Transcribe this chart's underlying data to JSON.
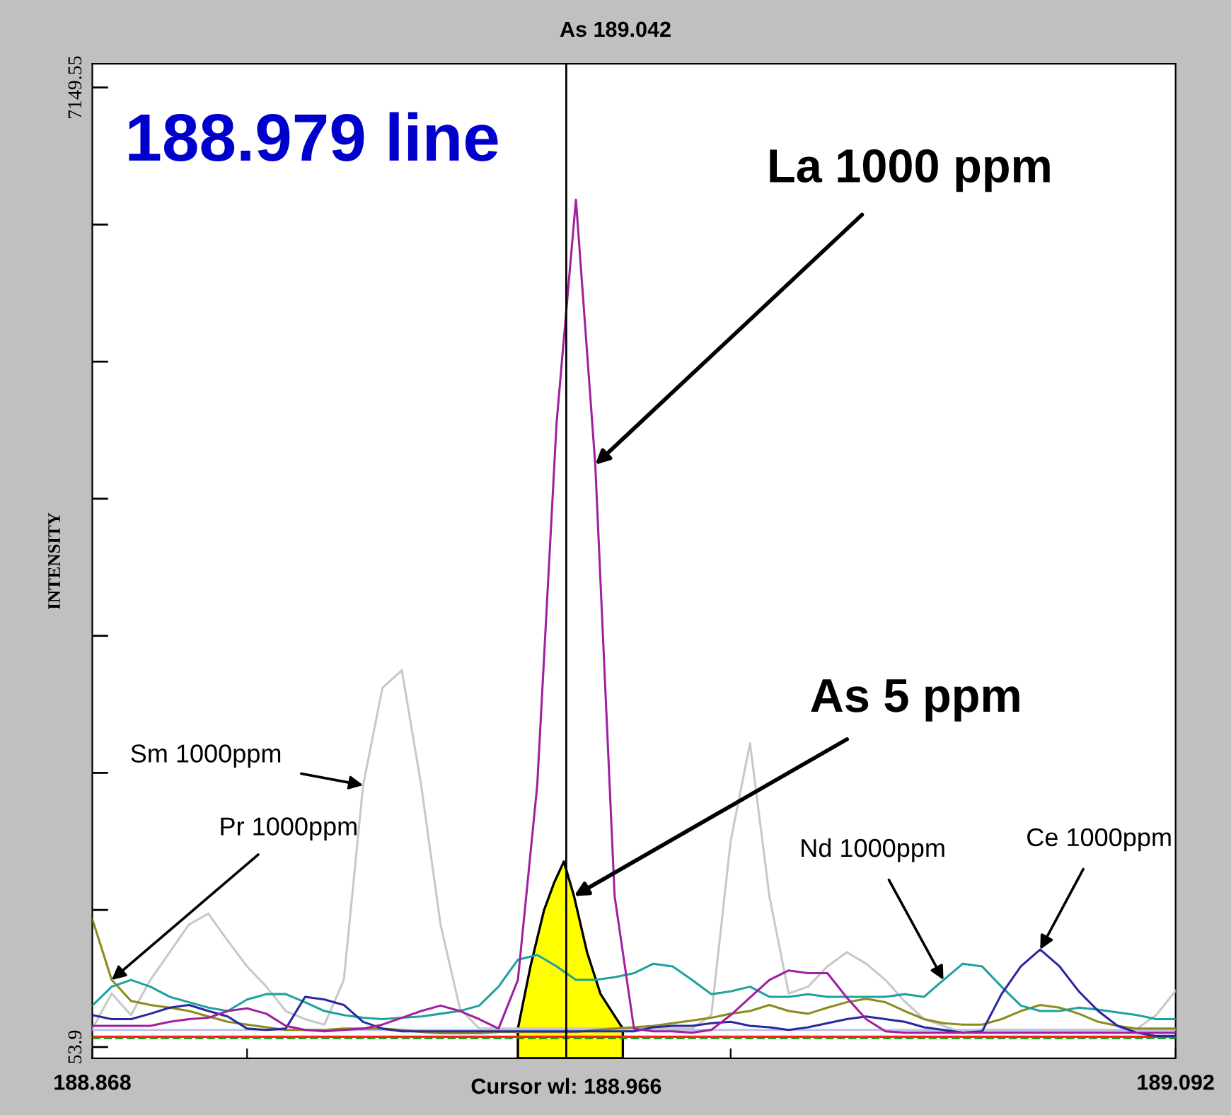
{
  "chart_data": {
    "type": "line",
    "title": "As 189.042",
    "ylabel": "INTENSITY",
    "x": [
      188.868,
      188.872,
      188.876,
      188.88,
      188.884,
      188.888,
      188.892,
      188.896,
      188.9,
      188.904,
      188.908,
      188.912,
      188.916,
      188.92,
      188.924,
      188.928,
      188.932,
      188.936,
      188.94,
      188.944,
      188.948,
      188.952,
      188.956,
      188.96,
      188.964,
      188.968,
      188.972,
      188.976,
      188.98,
      188.984,
      188.988,
      188.992,
      188.996,
      189.0,
      189.004,
      189.008,
      189.012,
      189.016,
      189.02,
      189.024,
      189.028,
      189.032,
      189.036,
      189.04,
      189.044,
      189.048,
      189.052,
      189.056,
      189.06,
      189.064,
      189.068,
      189.072,
      189.076,
      189.08,
      189.084,
      189.088,
      189.092
    ],
    "series": [
      {
        "color": "#c8c8c8",
        "values": [
          190,
          450,
          290,
          550,
          755,
          960,
          1040,
          840,
          650,
          500,
          320,
          260,
          220,
          550,
          1990,
          2710,
          2840,
          1990,
          960,
          340,
          190,
          190,
          190,
          190,
          190,
          190,
          190,
          190,
          190,
          190,
          190,
          190,
          290,
          1580,
          2300,
          1170,
          450,
          500,
          650,
          755,
          670,
          550,
          390,
          260,
          210,
          160,
          180,
          180,
          180,
          180,
          180,
          180,
          180,
          180,
          190,
          290,
          470
        ]
      },
      {
        "color": "#c0c0e8",
        "values": [
          180,
          180,
          180,
          180,
          180,
          180,
          180,
          180,
          180,
          180,
          180,
          180,
          180,
          180,
          180,
          180,
          180,
          180,
          180,
          180,
          180,
          180,
          180,
          180,
          180,
          180,
          180,
          180,
          180,
          180,
          180,
          180,
          180,
          180,
          180,
          180,
          180,
          180,
          180,
          180,
          180,
          180,
          180,
          180,
          180,
          180,
          180,
          180,
          180,
          180,
          180,
          180,
          180,
          180,
          180,
          180,
          180
        ]
      },
      {
        "color": "#00a000",
        "line_style": "dashed",
        "values": [
          120,
          120,
          120,
          120,
          120,
          120,
          120,
          120,
          120,
          120,
          120,
          120,
          120,
          120,
          120,
          120,
          120,
          120,
          120,
          120,
          120,
          120,
          120,
          120,
          120,
          120,
          120,
          120,
          120,
          120,
          120,
          120,
          120,
          120,
          120,
          120,
          120,
          120,
          120,
          120,
          120,
          120,
          120,
          120,
          120,
          120,
          120,
          120,
          120,
          120,
          120,
          120,
          120,
          120,
          120,
          120,
          120
        ]
      },
      {
        "color": "#ff2020",
        "values": [
          130,
          130,
          130,
          130,
          130,
          130,
          130,
          130,
          130,
          130,
          130,
          130,
          130,
          130,
          130,
          130,
          130,
          130,
          130,
          130,
          130,
          130,
          130,
          130,
          130,
          130,
          130,
          130,
          130,
          130,
          130,
          130,
          130,
          130,
          130,
          130,
          130,
          130,
          130,
          130,
          130,
          130,
          130,
          130,
          130,
          130,
          130,
          130,
          130,
          130,
          130,
          130,
          130,
          130,
          130,
          130,
          130
        ]
      },
      {
        "color": "#8c8c1e",
        "values": [
          1000,
          550,
          395,
          365,
          345,
          320,
          280,
          240,
          220,
          200,
          180,
          180,
          180,
          190,
          190,
          190,
          180,
          165,
          155,
          155,
          155,
          165,
          165,
          165,
          165,
          165,
          180,
          190,
          200,
          210,
          230,
          250,
          270,
          300,
          320,
          365,
          320,
          300,
          345,
          385,
          410,
          385,
          320,
          260,
          230,
          220,
          220,
          260,
          320,
          365,
          345,
          300,
          240,
          210,
          190,
          190,
          190
        ]
      },
      {
        "color": "#20a0a0",
        "values": [
          360,
          500,
          550,
          500,
          425,
          385,
          345,
          320,
          405,
          445,
          445,
          385,
          320,
          290,
          270,
          260,
          270,
          280,
          300,
          320,
          360,
          500,
          700,
          735,
          650,
          550,
          550,
          570,
          600,
          670,
          650,
          550,
          445,
          465,
          500,
          425,
          425,
          445,
          425,
          425,
          425,
          425,
          445,
          425,
          550,
          670,
          650,
          500,
          360,
          320,
          320,
          345,
          330,
          310,
          290,
          260,
          260
        ]
      },
      {
        "color": "#2828a0",
        "values": [
          290,
          260,
          260,
          300,
          345,
          365,
          320,
          280,
          190,
          180,
          190,
          425,
          405,
          365,
          240,
          190,
          170,
          170,
          170,
          170,
          170,
          170,
          170,
          170,
          170,
          170,
          170,
          170,
          170,
          200,
          210,
          210,
          230,
          240,
          210,
          200,
          180,
          200,
          230,
          260,
          280,
          260,
          240,
          200,
          180,
          160,
          170,
          445,
          650,
          775,
          650,
          465,
          320,
          210,
          160,
          135,
          135
        ]
      },
      {
        "color": "#a020a0",
        "values": [
          210,
          210,
          210,
          210,
          240,
          260,
          270,
          320,
          340,
          300,
          210,
          180,
          170,
          180,
          190,
          220,
          270,
          320,
          360,
          320,
          260,
          190,
          550,
          1990,
          4670,
          6320,
          4360,
          1170,
          190,
          170,
          170,
          160,
          180,
          290,
          420,
          550,
          620,
          600,
          600,
          420,
          260,
          170,
          160,
          160,
          160,
          160,
          160,
          160,
          160,
          160,
          160,
          160,
          160,
          160,
          160,
          160,
          160
        ]
      },
      {
        "type": "area",
        "color": "#ffff00",
        "x": [
          188.956,
          188.9586,
          188.9614,
          188.9635,
          188.9655,
          188.9676,
          188.9703,
          188.9731,
          188.9777
        ],
        "values": [
          190,
          650,
          1065,
          1270,
          1425,
          1170,
          755,
          445,
          190
        ]
      }
    ],
    "xlim": [
      188.868,
      189.092
    ],
    "xticks": [
      188.868,
      {
        "value": 188.9,
        "label": null
      },
      {
        "value": 189.0,
        "label": null
      },
      189.092
    ],
    "ylim": [
      -30,
      7325
    ],
    "yticks": [
      53.9,
      {
        "value": 1067.56,
        "label": null
      },
      {
        "value": 2081.23,
        "label": null
      },
      {
        "value": 3094.89,
        "label": null
      },
      {
        "value": 4108.56,
        "label": null
      },
      {
        "value": 5122.22,
        "label": null
      },
      {
        "value": 6135.89,
        "label": null
      },
      7149.55
    ],
    "ref_lines": [
      {
        "axis": "x",
        "value": 188.966,
        "label": "Cursor wl: 188.966",
        "color": "#000000"
      }
    ],
    "annotations": [
      "188.979 line",
      {
        "text": "La 1000 ppm",
        "x": 188.972,
        "y": 4360
      },
      {
        "text": "As 5 ppm",
        "x": 188.9676,
        "y": 1170
      },
      {
        "text": "Sm 1000ppm",
        "x": 188.924,
        "y": 1990
      },
      {
        "text": "Pr 1000ppm",
        "x": 188.872,
        "y": 550
      },
      {
        "text": "Nd 1000ppm",
        "x": 189.044,
        "y": 550
      },
      {
        "text": "Ce 1000ppm",
        "x": 189.064,
        "y": 775
      }
    ],
    "grid": false,
    "legend": false
  }
}
